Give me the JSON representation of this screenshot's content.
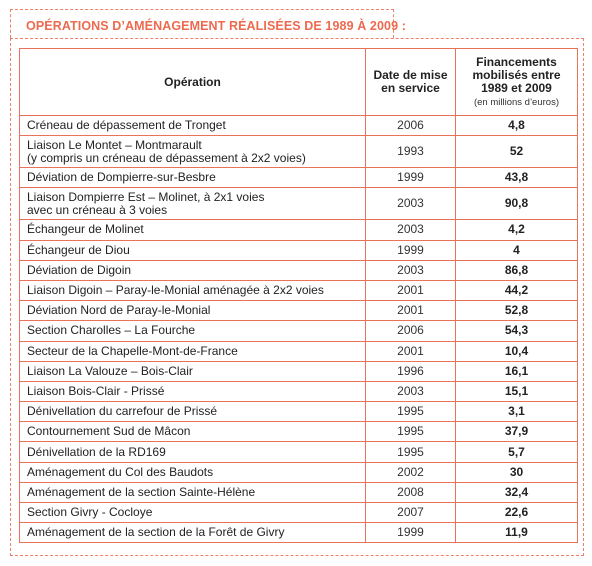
{
  "title": "OPÉRATIONS D’AMÉNAGEMENT RÉALISÉES DE 1989 À 2009 :",
  "headers": {
    "operation": "Opération",
    "date": "Date de mise en service",
    "financing": "Financements mobilisés entre 1989 et 2009",
    "financing_unit": "(en millions d’euros)"
  },
  "rows": [
    {
      "operation": "Créneau de dépassement de Tronget",
      "year": "2006",
      "amount": "4,8"
    },
    {
      "operation": "Liaison Le Montet – Montmarault",
      "operation_line2": "(y compris un créneau de dépassement à 2x2 voies)",
      "year": "1993",
      "amount": "52"
    },
    {
      "operation": "Déviation de Dompierre-sur-Besbre",
      "year": "1999",
      "amount": "43,8"
    },
    {
      "operation": "Liaison Dompierre Est – Molinet, à 2x1 voies",
      "operation_line2": "avec un créneau à 3 voies",
      "year": "2003",
      "amount": "90,8"
    },
    {
      "operation": "Échangeur de Molinet",
      "year": "2003",
      "amount": "4,2"
    },
    {
      "operation": "Échangeur de Diou",
      "year": "1999",
      "amount": "4"
    },
    {
      "operation": "Déviation de Digoin",
      "year": "2003",
      "amount": "86,8"
    },
    {
      "operation": "Liaison Digoin – Paray-le-Monial aménagée à 2x2 voies",
      "year": "2001",
      "amount": "44,2"
    },
    {
      "operation": "Déviation Nord de Paray-le-Monial",
      "year": "2001",
      "amount": "52,8"
    },
    {
      "operation": "Section Charolles – La Fourche",
      "year": "2006",
      "amount": "54,3"
    },
    {
      "operation": "Secteur de la Chapelle-Mont-de-France",
      "year": "2001",
      "amount": "10,4"
    },
    {
      "operation": "Liaison La Valouze – Bois-Clair",
      "year": "1996",
      "amount": "16,1"
    },
    {
      "operation": "Liaison Bois-Clair - Prissé",
      "year": "2003",
      "amount": "15,1"
    },
    {
      "operation": "Dénivellation du carrefour de Prissé",
      "year": "1995",
      "amount": "3,1"
    },
    {
      "operation": "Contournement Sud de Mâcon",
      "year": "1995",
      "amount": "37,9"
    },
    {
      "operation": "Dénivellation de la RD169",
      "year": "1995",
      "amount": "5,7"
    },
    {
      "operation": "Aménagement du Col des Baudots",
      "year": "2002",
      "amount": "30"
    },
    {
      "operation": "Aménagement de la section Sainte-Hélène",
      "year": "2008",
      "amount": "32,4"
    },
    {
      "operation": "Section Givry - Cocloye",
      "year": "2007",
      "amount": "22,6"
    },
    {
      "operation": "Aménagement de la section de la Forêt de Givry",
      "year": "1999",
      "amount": "11,9"
    }
  ]
}
